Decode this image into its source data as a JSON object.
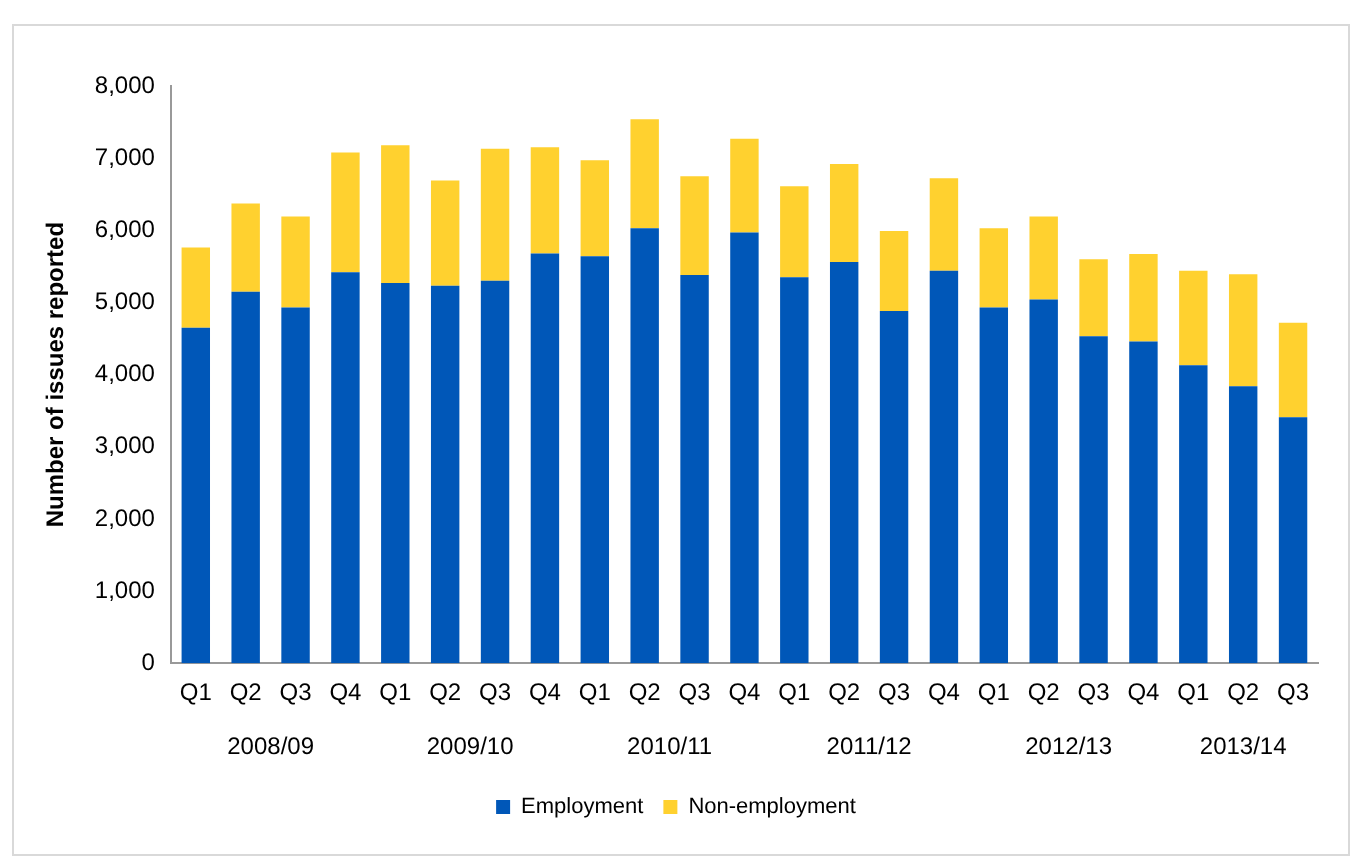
{
  "chart_data": {
    "type": "bar",
    "stacked": true,
    "ylabel": "Number of issues reported",
    "categories": [
      "Q1",
      "Q2",
      "Q3",
      "Q4",
      "Q1",
      "Q2",
      "Q3",
      "Q4",
      "Q1",
      "Q2",
      "Q3",
      "Q4",
      "Q1",
      "Q2",
      "Q3",
      "Q4",
      "Q1",
      "Q2",
      "Q3",
      "Q4",
      "Q1",
      "Q2",
      "Q3"
    ],
    "series": [
      {
        "name": "Employment",
        "color": "#0057b8",
        "values": [
          4650,
          5150,
          4930,
          5420,
          5270,
          5230,
          5300,
          5680,
          5640,
          6030,
          5380,
          5970,
          5350,
          5560,
          4880,
          5440,
          4930,
          5040,
          4530,
          4460,
          4130,
          3840,
          3410
        ]
      },
      {
        "name": "Non-employment",
        "color": "#ffd12f",
        "values": [
          1110,
          1220,
          1260,
          1660,
          1910,
          1460,
          1830,
          1470,
          1330,
          1510,
          1370,
          1300,
          1260,
          1360,
          1110,
          1280,
          1100,
          1150,
          1070,
          1210,
          1310,
          1550,
          1310
        ]
      }
    ],
    "ylim": [
      0,
      8000
    ],
    "yticks": [
      0,
      {
        "value": 1000,
        "label": "1,000"
      },
      {
        "value": 2000,
        "label": "2,000"
      },
      {
        "value": 3000,
        "label": "3,000"
      },
      {
        "value": 4000,
        "label": "4,000"
      },
      {
        "value": 5000,
        "label": "5,000"
      },
      {
        "value": 6000,
        "label": "6,000"
      },
      {
        "value": 7000,
        "label": "7,000"
      },
      {
        "value": 8000,
        "label": "8,000"
      }
    ],
    "annotations": [
      "2008/09",
      "2009/10",
      "2010/11",
      "2011/12",
      "2012/13",
      "2013/14"
    ],
    "grid": false,
    "legend": "bottom"
  }
}
